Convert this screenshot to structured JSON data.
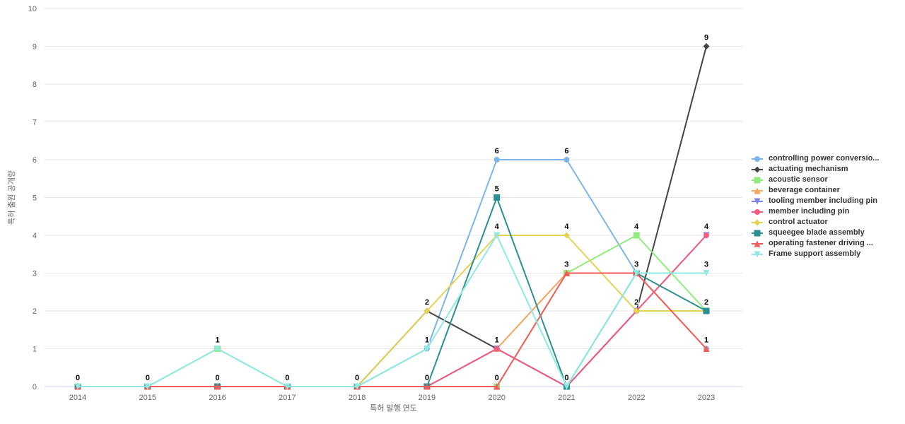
{
  "chart_data": {
    "type": "line",
    "title": "",
    "xlabel": "특허 발행 연도",
    "ylabel": "특허 출원 공개량",
    "categories": [
      "2014",
      "2015",
      "2016",
      "2017",
      "2018",
      "2019",
      "2020",
      "2021",
      "2022",
      "2023"
    ],
    "ylim": [
      0,
      10
    ],
    "ytick_interval": 1,
    "grid": true,
    "legend_position": "right-middle",
    "colors": {
      "grid": "#e6e6e6",
      "axis_line": "#ccd6eb",
      "tick_text": "#666666",
      "legend_text": "#333333",
      "data_label": "#000000"
    },
    "series": [
      {
        "name": "controlling power conversio...",
        "color": "#7cb5ec",
        "marker": "circle",
        "values": [
          0,
          0,
          0,
          0,
          0,
          1,
          6,
          6,
          3,
          1
        ]
      },
      {
        "name": "actuating mechanism",
        "color": "#434348",
        "marker": "diamond",
        "values": [
          0,
          0,
          0,
          0,
          0,
          2,
          1,
          0,
          2,
          9
        ]
      },
      {
        "name": "acoustic sensor",
        "color": "#90ed7d",
        "marker": "square",
        "values": [
          0,
          0,
          1,
          0,
          0,
          0,
          0,
          3,
          4,
          2
        ]
      },
      {
        "name": "beverage container",
        "color": "#f7a35c",
        "marker": "triangle",
        "values": [
          0,
          0,
          0,
          0,
          0,
          0,
          1,
          3,
          3,
          1
        ]
      },
      {
        "name": "tooling member including pin",
        "color": "#8085e9",
        "marker": "triangle-down",
        "values": [
          0,
          0,
          0,
          0,
          0,
          0,
          1,
          0,
          2,
          4
        ]
      },
      {
        "name": "member including pin",
        "color": "#f15c80",
        "marker": "circle",
        "values": [
          0,
          0,
          0,
          0,
          0,
          0,
          1,
          0,
          2,
          4
        ]
      },
      {
        "name": "control actuator",
        "color": "#e4d354",
        "marker": "diamond",
        "values": [
          0,
          0,
          0,
          0,
          0,
          2,
          4,
          4,
          2,
          2
        ]
      },
      {
        "name": "squeegee blade assembly",
        "color": "#2b908f",
        "marker": "square",
        "values": [
          0,
          0,
          0,
          0,
          0,
          0,
          5,
          0,
          3,
          2
        ]
      },
      {
        "name": "operating fastener driving ...",
        "color": "#f45b5b",
        "marker": "triangle",
        "values": [
          0,
          0,
          0,
          0,
          0,
          0,
          0,
          3,
          3,
          1
        ]
      },
      {
        "name": "Frame support assembly",
        "color": "#91e8e1",
        "marker": "triangle-down",
        "values": [
          0,
          0,
          1,
          0,
          0,
          1,
          4,
          0,
          3,
          3
        ]
      }
    ]
  }
}
